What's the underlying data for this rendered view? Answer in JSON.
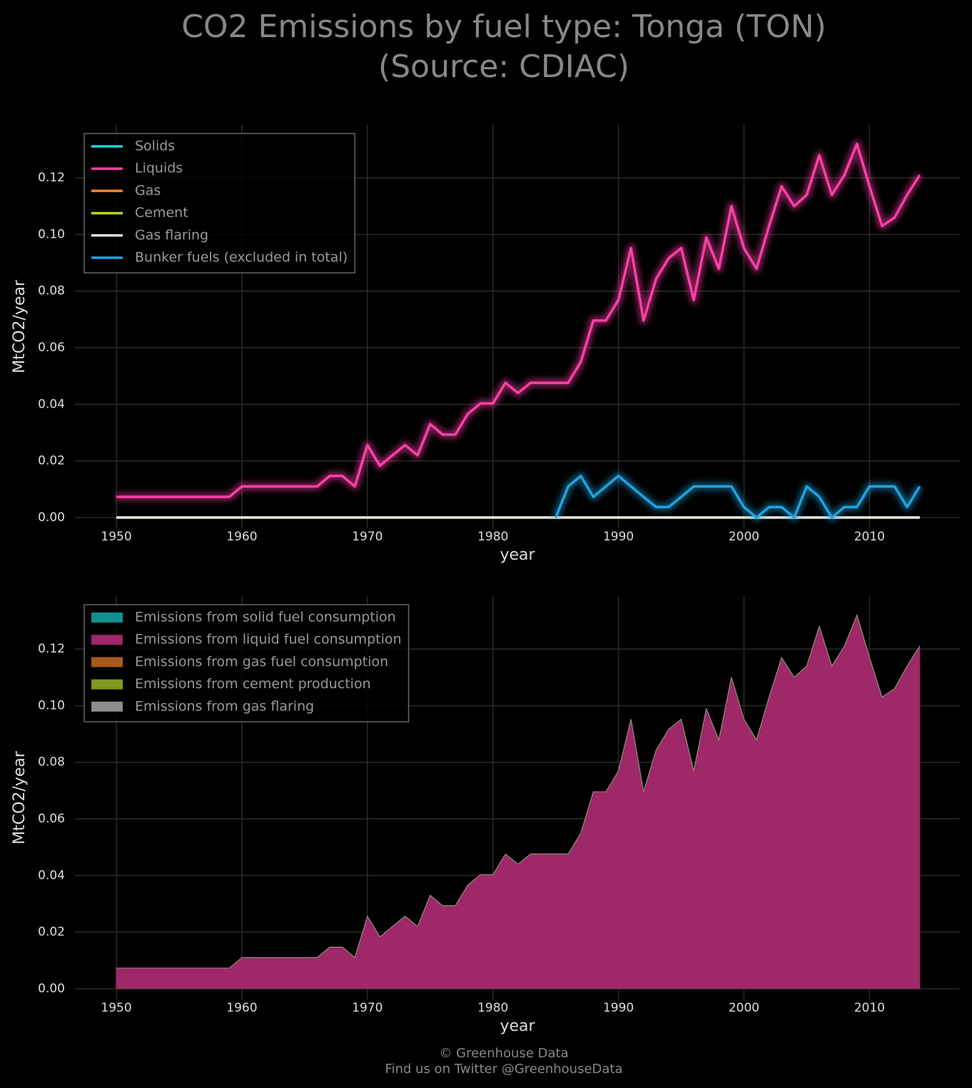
{
  "title": [
    "CO2 Emissions by fuel type: Tonga (TON)",
    "(Source: CDIAC)"
  ],
  "footer": [
    "© Greenhouse Data",
    "Find us on Twitter @GreenhouseData"
  ],
  "chart_data": [
    {
      "type": "line",
      "xlabel": "year",
      "ylabel": "MtCO2/year",
      "legend": "upper left",
      "grid": true,
      "xlim": [
        1946.7,
        2017.2
      ],
      "ylim": [
        -0.0038,
        0.1387
      ],
      "xticks": [
        1950,
        1960,
        1970,
        1980,
        1990,
        2000,
        2010
      ],
      "yticks": [
        {
          "value": 0,
          "label": "0.00"
        },
        0.02,
        0.04,
        0.06,
        0.08,
        {
          "value": 0.1,
          "label": "0.10"
        },
        0.12
      ],
      "x": [
        1950,
        1951,
        1952,
        1953,
        1954,
        1955,
        1956,
        1957,
        1958,
        1959,
        1960,
        1961,
        1962,
        1963,
        1964,
        1965,
        1966,
        1967,
        1968,
        1969,
        1970,
        1971,
        1972,
        1973,
        1974,
        1975,
        1976,
        1977,
        1978,
        1979,
        1980,
        1981,
        1982,
        1983,
        1984,
        1985,
        1986,
        1987,
        1988,
        1989,
        1990,
        1991,
        1992,
        1993,
        1994,
        1995,
        1996,
        1997,
        1998,
        1999,
        2000,
        2001,
        2002,
        2003,
        2004,
        2005,
        2006,
        2007,
        2008,
        2009,
        2010,
        2011,
        2012,
        2013,
        2014
      ],
      "series": [
        {
          "name": "Solids",
          "color": "#1fd3d8",
          "values": [
            0,
            0,
            0,
            0,
            0,
            0,
            0,
            0,
            0,
            0,
            0,
            0,
            0,
            0,
            0,
            0,
            0,
            0,
            0,
            0,
            0,
            0,
            0,
            0,
            0,
            0,
            0,
            0,
            0,
            0,
            0,
            0,
            0,
            0,
            0,
            0,
            0,
            0,
            0,
            0,
            0,
            0,
            0,
            0,
            0,
            0,
            0,
            0,
            0,
            0,
            0,
            0,
            0,
            0,
            0,
            0,
            0,
            0,
            0,
            0,
            0,
            0,
            0,
            0,
            0
          ]
        },
        {
          "name": "Liquids",
          "color": "#ff3fa6",
          "values": [
            0.0073,
            0.0073,
            0.0073,
            0.0073,
            0.0073,
            0.0073,
            0.0073,
            0.0073,
            0.0073,
            0.0073,
            0.011,
            0.011,
            0.011,
            0.011,
            0.011,
            0.011,
            0.011,
            0.0147,
            0.0147,
            0.011,
            0.0256,
            0.0183,
            0.022,
            0.0256,
            0.022,
            0.033,
            0.0293,
            0.0293,
            0.0366,
            0.0403,
            0.0403,
            0.0476,
            0.044,
            0.0476,
            0.0476,
            0.0476,
            0.0476,
            0.055,
            0.0696,
            0.0696,
            0.0769,
            0.0952,
            0.0696,
            0.0843,
            0.0916,
            0.0952,
            0.0769,
            0.0989,
            0.0879,
            0.11,
            0.0952,
            0.0879,
            0.103,
            0.117,
            0.11,
            0.114,
            0.128,
            0.114,
            0.121,
            0.132,
            0.117,
            0.103,
            0.106,
            0.114,
            0.121
          ]
        },
        {
          "name": "Gas",
          "color": "#ff7f2a",
          "values": [
            0,
            0,
            0,
            0,
            0,
            0,
            0,
            0,
            0,
            0,
            0,
            0,
            0,
            0,
            0,
            0,
            0,
            0,
            0,
            0,
            0,
            0,
            0,
            0,
            0,
            0,
            0,
            0,
            0,
            0,
            0,
            0,
            0,
            0,
            0,
            0,
            0,
            0,
            0,
            0,
            0,
            0,
            0,
            0,
            0,
            0,
            0,
            0,
            0,
            0,
            0,
            0,
            0,
            0,
            0,
            0,
            0,
            0,
            0,
            0,
            0,
            0,
            0,
            0,
            0
          ]
        },
        {
          "name": "Cement",
          "color": "#b9d522",
          "values": [
            0,
            0,
            0,
            0,
            0,
            0,
            0,
            0,
            0,
            0,
            0,
            0,
            0,
            0,
            0,
            0,
            0,
            0,
            0,
            0,
            0,
            0,
            0,
            0,
            0,
            0,
            0,
            0,
            0,
            0,
            0,
            0,
            0,
            0,
            0,
            0,
            0,
            0,
            0,
            0,
            0,
            0,
            0,
            0,
            0,
            0,
            0,
            0,
            0,
            0,
            0,
            0,
            0,
            0,
            0,
            0,
            0,
            0,
            0,
            0,
            0,
            0,
            0,
            0,
            0
          ]
        },
        {
          "name": "Gas flaring",
          "color": "#dddddd",
          "values": [
            0,
            0,
            0,
            0,
            0,
            0,
            0,
            0,
            0,
            0,
            0,
            0,
            0,
            0,
            0,
            0,
            0,
            0,
            0,
            0,
            0,
            0,
            0,
            0,
            0,
            0,
            0,
            0,
            0,
            0,
            0,
            0,
            0,
            0,
            0,
            0,
            0,
            0,
            0,
            0,
            0,
            0,
            0,
            0,
            0,
            0,
            0,
            0,
            0,
            0,
            0,
            0,
            0,
            0,
            0,
            0,
            0,
            0,
            0,
            0,
            0,
            0,
            0,
            0,
            0
          ]
        },
        {
          "name": "Bunker fuels (excluded in total)",
          "color": "#1fa3e0",
          "values": [
            null,
            null,
            null,
            null,
            null,
            null,
            null,
            null,
            null,
            null,
            null,
            null,
            null,
            null,
            null,
            null,
            null,
            null,
            null,
            null,
            null,
            null,
            null,
            null,
            null,
            null,
            null,
            null,
            null,
            null,
            null,
            null,
            null,
            null,
            null,
            0,
            0.011,
            0.0147,
            0.0073,
            0.011,
            0.0147,
            0.011,
            0.0073,
            0.0037,
            0.0037,
            0.0073,
            0.011,
            0.011,
            0.011,
            0.011,
            0.0037,
            0,
            0.0037,
            0.0037,
            0,
            0.011,
            0.0073,
            0,
            0.0037,
            0.0037,
            0.011,
            0.011,
            0.011,
            0.0037,
            0.011
          ]
        }
      ]
    },
    {
      "type": "stacked_area",
      "xlabel": "year",
      "ylabel": "MtCO2/year",
      "legend": "upper left",
      "grid": true,
      "xlim": [
        1946.7,
        2017.2
      ],
      "ylim": [
        -0.0038,
        0.1387
      ],
      "xticks": [
        1950,
        1960,
        1970,
        1980,
        1990,
        2000,
        2010
      ],
      "yticks": [
        {
          "value": 0,
          "label": "0.00"
        },
        0.02,
        0.04,
        0.06,
        0.08,
        {
          "value": 0.1,
          "label": "0.10"
        },
        0.12
      ],
      "x": [
        1950,
        1951,
        1952,
        1953,
        1954,
        1955,
        1956,
        1957,
        1958,
        1959,
        1960,
        1961,
        1962,
        1963,
        1964,
        1965,
        1966,
        1967,
        1968,
        1969,
        1970,
        1971,
        1972,
        1973,
        1974,
        1975,
        1976,
        1977,
        1978,
        1979,
        1980,
        1981,
        1982,
        1983,
        1984,
        1985,
        1986,
        1987,
        1988,
        1989,
        1990,
        1991,
        1992,
        1993,
        1994,
        1995,
        1996,
        1997,
        1998,
        1999,
        2000,
        2001,
        2002,
        2003,
        2004,
        2005,
        2006,
        2007,
        2008,
        2009,
        2010,
        2011,
        2012,
        2013,
        2014
      ],
      "series": [
        {
          "name": "Emissions from solid fuel consumption",
          "color": "#129090",
          "values": [
            0,
            0,
            0,
            0,
            0,
            0,
            0,
            0,
            0,
            0,
            0,
            0,
            0,
            0,
            0,
            0,
            0,
            0,
            0,
            0,
            0,
            0,
            0,
            0,
            0,
            0,
            0,
            0,
            0,
            0,
            0,
            0,
            0,
            0,
            0,
            0,
            0,
            0,
            0,
            0,
            0,
            0,
            0,
            0,
            0,
            0,
            0,
            0,
            0,
            0,
            0,
            0,
            0,
            0,
            0,
            0,
            0,
            0,
            0,
            0,
            0,
            0,
            0,
            0,
            0
          ]
        },
        {
          "name": "Emissions from liquid fuel consumption",
          "color": "#9e2868",
          "values": [
            0.0073,
            0.0073,
            0.0073,
            0.0073,
            0.0073,
            0.0073,
            0.0073,
            0.0073,
            0.0073,
            0.0073,
            0.011,
            0.011,
            0.011,
            0.011,
            0.011,
            0.011,
            0.011,
            0.0147,
            0.0147,
            0.011,
            0.0256,
            0.0183,
            0.022,
            0.0256,
            0.022,
            0.033,
            0.0293,
            0.0293,
            0.0366,
            0.0403,
            0.0403,
            0.0476,
            0.044,
            0.0476,
            0.0476,
            0.0476,
            0.0476,
            0.055,
            0.0696,
            0.0696,
            0.0769,
            0.0952,
            0.0696,
            0.0843,
            0.0916,
            0.0952,
            0.0769,
            0.0989,
            0.0879,
            0.11,
            0.0952,
            0.0879,
            0.103,
            0.117,
            0.11,
            0.114,
            0.128,
            0.114,
            0.121,
            0.132,
            0.117,
            0.103,
            0.106,
            0.114,
            0.121
          ]
        },
        {
          "name": "Emissions from gas fuel consumption",
          "color": "#a85a1c",
          "values": [
            0,
            0,
            0,
            0,
            0,
            0,
            0,
            0,
            0,
            0,
            0,
            0,
            0,
            0,
            0,
            0,
            0,
            0,
            0,
            0,
            0,
            0,
            0,
            0,
            0,
            0,
            0,
            0,
            0,
            0,
            0,
            0,
            0,
            0,
            0,
            0,
            0,
            0,
            0,
            0,
            0,
            0,
            0,
            0,
            0,
            0,
            0,
            0,
            0,
            0,
            0,
            0,
            0,
            0,
            0,
            0,
            0,
            0,
            0,
            0,
            0,
            0,
            0,
            0,
            0
          ]
        },
        {
          "name": "Emissions from cement production",
          "color": "#7f9a1c",
          "values": [
            0,
            0,
            0,
            0,
            0,
            0,
            0,
            0,
            0,
            0,
            0,
            0,
            0,
            0,
            0,
            0,
            0,
            0,
            0,
            0,
            0,
            0,
            0,
            0,
            0,
            0,
            0,
            0,
            0,
            0,
            0,
            0,
            0,
            0,
            0,
            0,
            0,
            0,
            0,
            0,
            0,
            0,
            0,
            0,
            0,
            0,
            0,
            0,
            0,
            0,
            0,
            0,
            0,
            0,
            0,
            0,
            0,
            0,
            0,
            0,
            0,
            0,
            0,
            0,
            0
          ]
        },
        {
          "name": "Emissions from gas flaring",
          "color": "#8c8c8c",
          "values": [
            0,
            0,
            0,
            0,
            0,
            0,
            0,
            0,
            0,
            0,
            0,
            0,
            0,
            0,
            0,
            0,
            0,
            0,
            0,
            0,
            0,
            0,
            0,
            0,
            0,
            0,
            0,
            0,
            0,
            0,
            0,
            0,
            0,
            0,
            0,
            0,
            0,
            0,
            0,
            0,
            0,
            0,
            0,
            0,
            0,
            0,
            0,
            0,
            0,
            0,
            0,
            0,
            0,
            0,
            0,
            0,
            0,
            0,
            0,
            0,
            0,
            0,
            0,
            0,
            0
          ]
        }
      ]
    }
  ]
}
